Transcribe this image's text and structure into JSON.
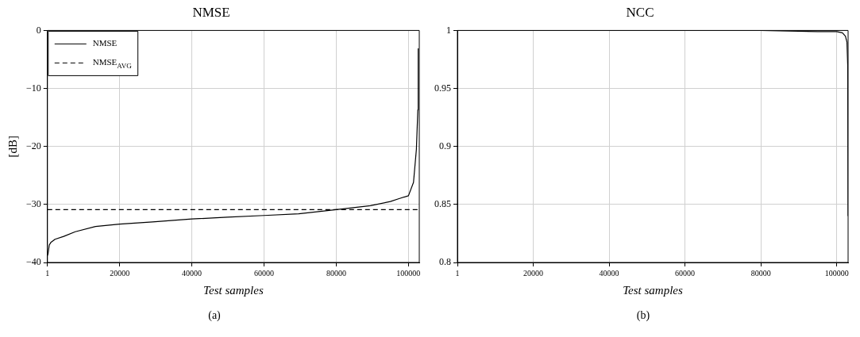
{
  "chart_data": [
    {
      "type": "line",
      "title": "NMSE",
      "xlabel": "Test samples",
      "ylabel": "[dB]",
      "xlim": [
        1,
        103000
      ],
      "ylim": [
        -40,
        0
      ],
      "xticks": [
        1,
        20000,
        40000,
        60000,
        80000,
        100000
      ],
      "yticks": [
        {
          "value": -40,
          "label": "−40"
        },
        {
          "value": -30,
          "label": "−30"
        },
        {
          "value": -20,
          "label": "−20"
        },
        {
          "value": -10,
          "label": "−10"
        },
        0
      ],
      "grid": true,
      "legend": "top left",
      "marker": "none",
      "annotations": [
        "(a)"
      ],
      "series": [
        {
          "name": "NMSE",
          "color": "#000000",
          "line_style": "solid",
          "x": [
            1,
            160,
            500,
            1000,
            2100,
            4500,
            7700,
            13300,
            20000,
            29100,
            40000,
            49800,
            60000,
            69600,
            80000,
            89500,
            95000,
            97400,
            100000,
            101400,
            102200,
            102600,
            102700
          ],
          "values": [
            -38.8,
            -38.5,
            -37,
            -36.5,
            -36,
            -35.5,
            -34.7,
            -33.8,
            -33.4,
            -33.0,
            -32.5,
            -32.2,
            -31.9,
            -31.6,
            -30.9,
            -30.2,
            -29.5,
            -29.0,
            -28.5,
            -26.2,
            -20.5,
            -13.7,
            -3.1
          ]
        },
        {
          "name": "NMSE$_{AVG}$",
          "color": "#000000",
          "line_style": "dashed",
          "x": [
            1,
            103000
          ],
          "values": [
            -30.9,
            -30.9
          ]
        }
      ]
    },
    {
      "type": "line",
      "title": "NCC",
      "xlabel": "Test samples",
      "xlim": [
        1,
        103000
      ],
      "ylim": [
        0.8,
        1
      ],
      "xticks": [
        1,
        20000,
        40000,
        60000,
        80000,
        100000
      ],
      "yticks": [
        0.8,
        0.85,
        0.9,
        0.95,
        1
      ],
      "grid": true,
      "marker": "none",
      "annotations": [
        "(b)"
      ],
      "series": [
        {
          "color": "#000000",
          "line_style": "solid",
          "x": [
            1,
            40000,
            80000,
            95000,
            100000,
            101500,
            102300,
            102700,
            102900,
            103000
          ],
          "values": [
            1,
            1,
            1,
            0.999,
            0.999,
            0.998,
            0.995,
            0.99,
            0.97,
            0.84
          ]
        }
      ]
    }
  ]
}
